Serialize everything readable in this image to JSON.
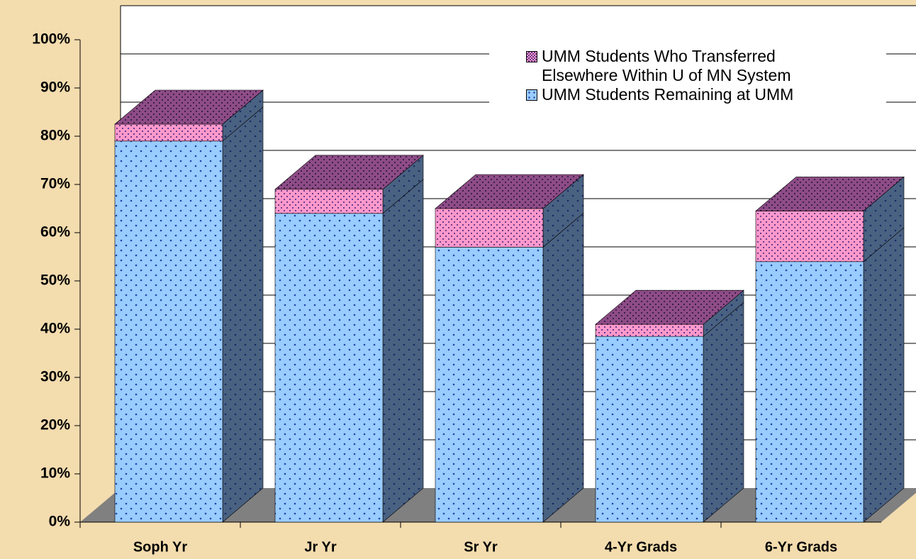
{
  "chart_data": {
    "type": "bar3d_stacked",
    "categories": [
      "Soph Yr",
      "Jr Yr",
      "Sr Yr",
      "4-Yr Grads",
      "6-Yr Grads"
    ],
    "series": [
      {
        "name": "UMM Students Remaining at UMM",
        "color": "#99ccff",
        "values": [
          79,
          64,
          57,
          38.5,
          54
        ]
      },
      {
        "name": "UMM Students Who Transferred Elsewhere Within U of MN System",
        "color": "#ff99cc",
        "values": [
          3.5,
          5,
          8,
          2.5,
          10.5
        ]
      }
    ],
    "ylim": [
      0,
      100
    ],
    "yticks": [
      {
        "value": 0,
        "label": "0%"
      },
      {
        "value": 10,
        "label": "10%"
      },
      {
        "value": 20,
        "label": "20%"
      },
      {
        "value": 30,
        "label": "30%"
      },
      {
        "value": 40,
        "label": "40%"
      },
      {
        "value": 50,
        "label": "50%"
      },
      {
        "value": 60,
        "label": "60%"
      },
      {
        "value": 70,
        "label": "70%"
      },
      {
        "value": 80,
        "label": "80%"
      },
      {
        "value": 90,
        "label": "90%"
      },
      {
        "value": 100,
        "label": "100%"
      }
    ],
    "grid": true
  }
}
